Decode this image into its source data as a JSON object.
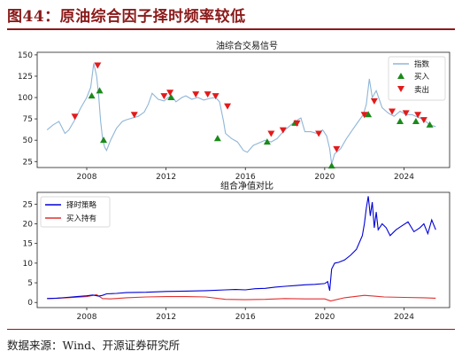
{
  "header": {
    "title": "图44：原油综合因子择时频率较低"
  },
  "footer": {
    "source": "数据来源：Wind、开源证券研究所"
  },
  "colors": {
    "title": "#8B1A1A",
    "index_line": "#8fb6d8",
    "buy_marker": "#1a8a1a",
    "sell_marker": "#e31a1a",
    "strategy_line": "#0000d8",
    "buyhold_line": "#e03030"
  },
  "chart_data": [
    {
      "type": "line",
      "title": "油综合交易信号",
      "xlabel": "",
      "ylabel": "",
      "xlim": [
        2005.5,
        2026.3
      ],
      "ylim": [
        18,
        153
      ],
      "x_ticks": [
        "2008",
        "2012",
        "2016",
        "2020",
        "2024"
      ],
      "y_ticks": [
        25,
        50,
        75,
        100,
        125,
        150
      ],
      "grid": false,
      "legend_position": "top-right",
      "legend": [
        "指数",
        "买入",
        "卖出"
      ],
      "series": [
        {
          "name": "指数",
          "x": [
            2006.0,
            2006.3,
            2006.6,
            2006.9,
            2007.1,
            2007.4,
            2007.7,
            2008.0,
            2008.2,
            2008.35,
            2008.5,
            2008.6,
            2008.7,
            2008.8,
            2008.9,
            2009.0,
            2009.2,
            2009.5,
            2009.8,
            2010.0,
            2010.3,
            2010.6,
            2010.9,
            2011.1,
            2011.3,
            2011.6,
            2011.9,
            2012.1,
            2012.3,
            2012.5,
            2012.8,
            2013.0,
            2013.3,
            2013.6,
            2013.9,
            2014.2,
            2014.5,
            2014.7,
            2014.9,
            2015.0,
            2015.3,
            2015.6,
            2015.9,
            2016.1,
            2016.4,
            2016.7,
            2017.0,
            2017.3,
            2017.6,
            2017.9,
            2018.2,
            2018.5,
            2018.8,
            2019.0,
            2019.3,
            2019.6,
            2019.9,
            2020.1,
            2020.25,
            2020.35,
            2020.5,
            2020.8,
            2021.1,
            2021.4,
            2021.7,
            2021.95,
            2022.1,
            2022.25,
            2022.4,
            2022.6,
            2022.9,
            2023.2,
            2023.5,
            2023.8,
            2024.1,
            2024.4,
            2024.7,
            2025.0,
            2025.3,
            2025.6
          ],
          "values": [
            62,
            68,
            72,
            58,
            62,
            74,
            88,
            100,
            112,
            140,
            125,
            102,
            72,
            52,
            42,
            38,
            50,
            64,
            72,
            74,
            76,
            78,
            83,
            92,
            105,
            98,
            96,
            100,
            102,
            95,
            100,
            102,
            98,
            100,
            97,
            99,
            100,
            95,
            72,
            58,
            52,
            48,
            38,
            36,
            44,
            47,
            50,
            48,
            52,
            60,
            66,
            72,
            76,
            60,
            60,
            58,
            62,
            55,
            40,
            22,
            34,
            40,
            52,
            62,
            72,
            80,
            92,
            122,
            100,
            108,
            88,
            82,
            78,
            84,
            80,
            80,
            77,
            74,
            68,
            66
          ]
        },
        {
          "name": "买入",
          "x": [
            2008.25,
            2008.65,
            2008.85,
            2012.25,
            2014.6,
            2017.1,
            2018.5,
            2020.35,
            2022.2,
            2023.8,
            2024.6,
            2025.3
          ],
          "values": [
            102,
            108,
            50,
            100,
            52,
            48,
            70,
            20,
            80,
            72,
            72,
            68
          ]
        },
        {
          "name": "卖出",
          "x": [
            2007.4,
            2008.55,
            2010.4,
            2011.9,
            2012.2,
            2013.5,
            2014.1,
            2014.5,
            2015.1,
            2017.3,
            2017.9,
            2018.6,
            2019.7,
            2020.6,
            2022.0,
            2022.5,
            2023.4,
            2024.1,
            2024.7,
            2025.0
          ],
          "values": [
            78,
            138,
            80,
            102,
            106,
            104,
            104,
            102,
            90,
            58,
            62,
            70,
            58,
            40,
            80,
            96,
            84,
            82,
            80,
            74
          ]
        }
      ]
    },
    {
      "type": "line",
      "title": "组合净值对比",
      "xlabel": "",
      "ylabel": "",
      "xlim": [
        2005.5,
        2026.3
      ],
      "ylim": [
        -1.3,
        28
      ],
      "x_ticks": [
        "2008",
        "2012",
        "2016",
        "2020",
        "2024"
      ],
      "y_ticks": [
        0,
        5,
        10,
        15,
        20,
        25
      ],
      "grid": false,
      "legend_position": "top-left",
      "legend": [
        "择时策略",
        "买入持有"
      ],
      "series": [
        {
          "name": "择时策略",
          "x": [
            2006.0,
            2006.5,
            2007.0,
            2007.5,
            2008.0,
            2008.3,
            2008.6,
            2008.8,
            2009.0,
            2009.5,
            2010.0,
            2011.0,
            2012.0,
            2013.0,
            2014.0,
            2015.0,
            2015.5,
            2016.0,
            2016.5,
            2017.0,
            2017.5,
            2018.0,
            2018.5,
            2019.0,
            2019.5,
            2020.0,
            2020.15,
            2020.25,
            2020.35,
            2020.5,
            2020.7,
            2021.0,
            2021.3,
            2021.6,
            2021.9,
            2022.0,
            2022.1,
            2022.2,
            2022.3,
            2022.4,
            2022.5,
            2022.6,
            2022.7,
            2022.9,
            2023.1,
            2023.3,
            2023.6,
            2023.9,
            2024.2,
            2024.5,
            2024.8,
            2025.0,
            2025.2,
            2025.4,
            2025.6
          ],
          "values": [
            1.0,
            1.1,
            1.3,
            1.5,
            1.7,
            1.9,
            1.6,
            1.8,
            2.2,
            2.3,
            2.5,
            2.6,
            2.8,
            2.9,
            3.0,
            3.2,
            3.3,
            3.2,
            3.5,
            3.6,
            3.9,
            4.1,
            4.3,
            4.5,
            4.6,
            4.8,
            5.3,
            3.0,
            8.5,
            10.0,
            10.2,
            10.8,
            12.0,
            13.5,
            17.0,
            20.0,
            24.0,
            27.0,
            22.0,
            25.5,
            19.0,
            23.0,
            18.5,
            20.0,
            19.0,
            17.0,
            18.5,
            19.5,
            20.5,
            18.0,
            19.0,
            20.0,
            17.5,
            21.0,
            18.5
          ]
        },
        {
          "name": "买入持有",
          "x": [
            2006.0,
            2007.0,
            2008.0,
            2008.5,
            2008.8,
            2009.2,
            2010.0,
            2011.0,
            2012.0,
            2013.0,
            2014.0,
            2015.0,
            2016.0,
            2017.0,
            2018.0,
            2019.0,
            2020.0,
            2020.3,
            2021.0,
            2022.0,
            2022.5,
            2023.0,
            2024.0,
            2025.0,
            2025.6
          ],
          "values": [
            1.0,
            1.2,
            1.5,
            2.0,
            1.0,
            0.9,
            1.2,
            1.4,
            1.5,
            1.5,
            1.4,
            0.8,
            0.7,
            0.8,
            1.0,
            0.9,
            0.9,
            0.4,
            1.2,
            1.8,
            1.6,
            1.4,
            1.3,
            1.2,
            1.1
          ]
        }
      ]
    }
  ]
}
